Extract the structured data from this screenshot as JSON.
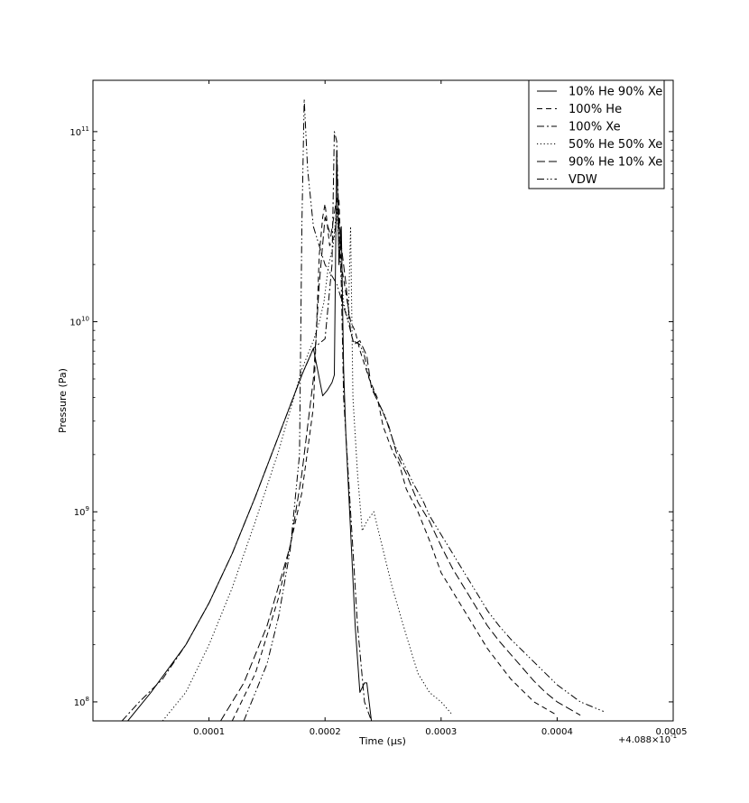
{
  "chart_data": {
    "type": "line",
    "title": "",
    "xlabel": "Time (μs)",
    "ylabel": "Pressure (Pa)",
    "x_offset_label": "+4.088×10",
    "x_offset_exponent": "-1",
    "y_scale": "log",
    "xlim": [
      0.0,
      0.0005
    ],
    "ylim_log10": [
      7.9,
      11.27
    ],
    "grid": false,
    "legend_position": "top-right",
    "x_ticks": [
      {
        "value": 0.0001,
        "label": "0.0001"
      },
      {
        "value": 0.0002,
        "label": "0.0002"
      },
      {
        "value": 0.0003,
        "label": "0.0003"
      },
      {
        "value": 0.0004,
        "label": "0.0004"
      },
      {
        "value": 0.0005,
        "label": "0.0005"
      }
    ],
    "y_ticks": [
      {
        "value": 8,
        "base": "10",
        "exp": "8"
      },
      {
        "value": 9,
        "base": "10",
        "exp": "9"
      },
      {
        "value": 10,
        "base": "10",
        "exp": "10"
      },
      {
        "value": 11,
        "base": "10",
        "exp": "11"
      }
    ],
    "series": [
      {
        "name": "10% He 90% Xe",
        "style": "solid",
        "points": [
          [
            3e-05,
            7.9
          ],
          [
            5e-05,
            8.05
          ],
          [
            8e-05,
            8.3
          ],
          [
            0.0001,
            8.52
          ],
          [
            0.00012,
            8.78
          ],
          [
            0.00014,
            9.08
          ],
          [
            0.00016,
            9.4
          ],
          [
            0.00018,
            9.72
          ],
          [
            0.00019,
            9.86
          ],
          [
            0.000198,
            9.61
          ],
          [
            0.000202,
            9.64
          ],
          [
            0.000206,
            9.68
          ],
          [
            0.000208,
            9.72
          ],
          [
            0.00021,
            10.9
          ],
          [
            0.000212,
            10.3
          ],
          [
            0.000214,
            10.5
          ],
          [
            0.000216,
            9.75
          ],
          [
            0.000218,
            9.4
          ],
          [
            0.000222,
            8.9
          ],
          [
            0.000226,
            8.4
          ],
          [
            0.00023,
            8.05
          ],
          [
            0.000234,
            8.1
          ],
          [
            0.000236,
            8.1
          ],
          [
            0.00024,
            7.9
          ]
        ]
      },
      {
        "name": "100% He",
        "style": "dashed",
        "points": [
          [
            0.00012,
            7.9
          ],
          [
            0.00014,
            8.15
          ],
          [
            0.00016,
            8.55
          ],
          [
            0.00018,
            9.1
          ],
          [
            0.00019,
            9.55
          ],
          [
            0.000195,
            10.35
          ],
          [
            0.000198,
            10.55
          ],
          [
            0.0002,
            10.62
          ],
          [
            0.000204,
            10.4
          ],
          [
            0.000208,
            10.45
          ],
          [
            0.00021,
            10.55
          ],
          [
            0.000212,
            10.65
          ],
          [
            0.000214,
            10.3
          ],
          [
            0.000218,
            10.15
          ],
          [
            0.000222,
            10.0
          ],
          [
            0.000226,
            9.95
          ],
          [
            0.00023,
            9.85
          ],
          [
            0.000238,
            9.7
          ],
          [
            0.000245,
            9.6
          ],
          [
            0.00025,
            9.45
          ],
          [
            0.000258,
            9.32
          ],
          [
            0.000264,
            9.25
          ],
          [
            0.00027,
            9.12
          ],
          [
            0.00028,
            9.0
          ],
          [
            0.00029,
            8.85
          ],
          [
            0.0003,
            8.68
          ],
          [
            0.00031,
            8.58
          ],
          [
            0.00032,
            8.48
          ],
          [
            0.00033,
            8.38
          ],
          [
            0.00034,
            8.28
          ],
          [
            0.00035,
            8.2
          ],
          [
            0.00036,
            8.12
          ],
          [
            0.00038,
            8.0
          ],
          [
            0.0004,
            7.93
          ]
        ]
      },
      {
        "name": "100% Xe",
        "style": "dashdot",
        "points": [
          [
            2.5e-05,
            7.9
          ],
          [
            4e-05,
            8.0
          ],
          [
            6e-05,
            8.12
          ],
          [
            8e-05,
            8.3
          ],
          [
            0.0001,
            8.52
          ],
          [
            0.00012,
            8.78
          ],
          [
            0.00014,
            9.08
          ],
          [
            0.00016,
            9.4
          ],
          [
            0.00018,
            9.72
          ],
          [
            0.00019,
            9.86
          ],
          [
            0.0002,
            9.91
          ],
          [
            0.000206,
            10.3
          ],
          [
            0.000208,
            11.0
          ],
          [
            0.00021,
            10.95
          ],
          [
            0.000212,
            10.5
          ],
          [
            0.000214,
            10.2
          ],
          [
            0.000216,
            9.6
          ],
          [
            0.00022,
            9.2
          ],
          [
            0.000224,
            8.8
          ],
          [
            0.000228,
            8.4
          ],
          [
            0.000234,
            8.0
          ],
          [
            0.00024,
            7.9
          ]
        ]
      },
      {
        "name": "50% He 50% Xe",
        "style": "dotted",
        "points": [
          [
            6e-05,
            7.9
          ],
          [
            8e-05,
            8.05
          ],
          [
            0.0001,
            8.3
          ],
          [
            0.00012,
            8.6
          ],
          [
            0.00014,
            8.95
          ],
          [
            0.00016,
            9.32
          ],
          [
            0.00018,
            9.75
          ],
          [
            0.00019,
            9.9
          ],
          [
            0.000195,
            10.0
          ],
          [
            0.000199,
            10.1
          ],
          [
            0.000203,
            10.3
          ],
          [
            0.000207,
            10.4
          ],
          [
            0.00021,
            10.6
          ],
          [
            0.000212,
            10.4
          ],
          [
            0.000216,
            10.1
          ],
          [
            0.00022,
            10.0
          ],
          [
            0.000222,
            10.5
          ],
          [
            0.000224,
            9.6
          ],
          [
            0.000228,
            9.2
          ],
          [
            0.000232,
            8.9
          ],
          [
            0.000236,
            8.95
          ],
          [
            0.000242,
            9.0
          ],
          [
            0.000248,
            8.85
          ],
          [
            0.000258,
            8.6
          ],
          [
            0.00027,
            8.35
          ],
          [
            0.00028,
            8.15
          ],
          [
            0.00029,
            8.05
          ],
          [
            0.0003,
            8.0
          ],
          [
            0.00031,
            7.93
          ]
        ]
      },
      {
        "name": "90% He 10% Xe",
        "style": "longdash",
        "points": [
          [
            0.00011,
            7.9
          ],
          [
            0.00013,
            8.1
          ],
          [
            0.00015,
            8.4
          ],
          [
            0.00017,
            8.82
          ],
          [
            0.00018,
            9.2
          ],
          [
            0.00019,
            9.7
          ],
          [
            0.000195,
            10.2
          ],
          [
            0.0002,
            10.55
          ],
          [
            0.000205,
            10.45
          ],
          [
            0.00021,
            10.65
          ],
          [
            0.000214,
            10.4
          ],
          [
            0.000218,
            10.2
          ],
          [
            0.000222,
            9.95
          ],
          [
            0.000225,
            9.88
          ],
          [
            0.00023,
            9.9
          ],
          [
            0.000236,
            9.82
          ],
          [
            0.00024,
            9.65
          ],
          [
            0.000248,
            9.55
          ],
          [
            0.000255,
            9.45
          ],
          [
            0.000262,
            9.3
          ],
          [
            0.00027,
            9.2
          ],
          [
            0.00028,
            9.05
          ],
          [
            0.00029,
            8.95
          ],
          [
            0.0003,
            8.82
          ],
          [
            0.00031,
            8.7
          ],
          [
            0.00032,
            8.6
          ],
          [
            0.00033,
            8.5
          ],
          [
            0.00034,
            8.4
          ],
          [
            0.00035,
            8.32
          ],
          [
            0.00036,
            8.25
          ],
          [
            0.00037,
            8.18
          ],
          [
            0.00038,
            8.11
          ],
          [
            0.00039,
            8.05
          ],
          [
            0.0004,
            8.0
          ],
          [
            0.00042,
            7.93
          ]
        ]
      },
      {
        "name": "VDW",
        "style": "dashdotdot",
        "points": [
          [
            0.00013,
            7.9
          ],
          [
            0.00015,
            8.2
          ],
          [
            0.00016,
            8.45
          ],
          [
            0.00017,
            8.8
          ],
          [
            0.000178,
            9.3
          ],
          [
            0.00018,
            10.5
          ],
          [
            0.000182,
            11.17
          ],
          [
            0.000185,
            10.8
          ],
          [
            0.00019,
            10.5
          ],
          [
            0.0002,
            10.3
          ],
          [
            0.00021,
            10.2
          ],
          [
            0.00022,
            10.0
          ],
          [
            0.000224,
            9.9
          ],
          [
            0.00023,
            9.88
          ],
          [
            0.000234,
            9.82
          ],
          [
            0.000238,
            9.7
          ],
          [
            0.000244,
            9.6
          ],
          [
            0.000248,
            9.55
          ],
          [
            0.000252,
            9.5
          ],
          [
            0.000256,
            9.42
          ],
          [
            0.00026,
            9.35
          ],
          [
            0.000268,
            9.25
          ],
          [
            0.000276,
            9.15
          ],
          [
            0.000285,
            9.05
          ],
          [
            0.00029,
            8.98
          ],
          [
            0.0003,
            8.88
          ],
          [
            0.00031,
            8.78
          ],
          [
            0.00032,
            8.68
          ],
          [
            0.00033,
            8.58
          ],
          [
            0.00034,
            8.48
          ],
          [
            0.00035,
            8.4
          ],
          [
            0.00036,
            8.33
          ],
          [
            0.00037,
            8.27
          ],
          [
            0.00038,
            8.21
          ],
          [
            0.00039,
            8.15
          ],
          [
            0.0004,
            8.09
          ],
          [
            0.00042,
            8.0
          ],
          [
            0.00044,
            7.95
          ]
        ]
      }
    ]
  }
}
